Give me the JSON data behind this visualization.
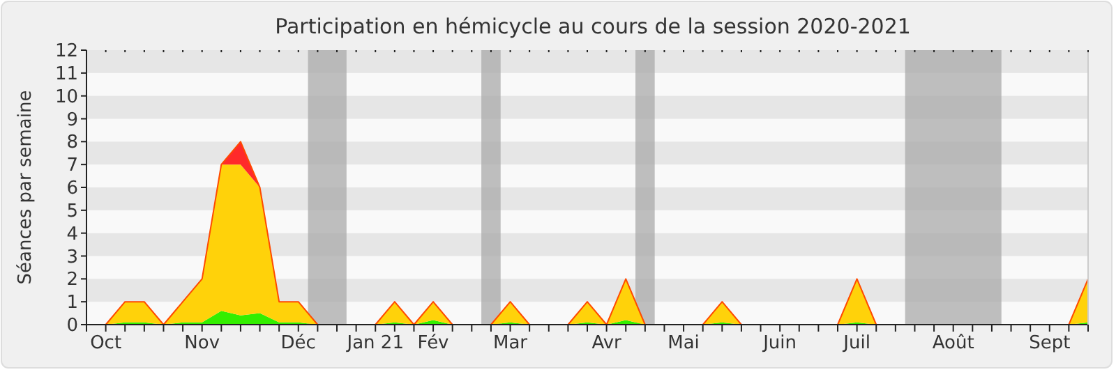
{
  "chart_data": {
    "type": "area",
    "title": "Participation en hémicycle au cours de la session 2020-2021",
    "ylabel": "Séances par semaine",
    "stacked": true,
    "categories": [
      null,
      "Oct",
      null,
      null,
      null,
      null,
      "Nov",
      null,
      null,
      null,
      null,
      "Déc",
      null,
      null,
      null,
      "Jan 21",
      null,
      null,
      "Fév",
      null,
      null,
      null,
      "Mar",
      null,
      null,
      null,
      null,
      "Avr",
      null,
      null,
      null,
      "Mai",
      null,
      null,
      null,
      null,
      "Juin",
      null,
      null,
      null,
      "Juil",
      null,
      null,
      null,
      null,
      "Août",
      null,
      null,
      null,
      null,
      "Sept",
      null,
      null
    ],
    "series": [
      {
        "color": "#33ee00",
        "values": [
          null,
          0,
          0.1,
          0.1,
          0,
          0.1,
          0.1,
          0.6,
          0.4,
          0.5,
          0.1,
          0.1,
          0,
          0,
          0,
          0,
          0.1,
          0,
          0.2,
          0,
          0,
          0,
          0.1,
          0,
          0,
          0,
          0.1,
          0,
          0.2,
          0,
          0,
          0,
          0,
          0.1,
          0,
          0,
          0,
          0,
          0,
          0,
          0.1,
          0,
          0,
          0,
          0,
          0,
          0,
          0,
          0,
          0,
          0,
          0,
          0.1
        ]
      },
      {
        "color": "#ffd20a",
        "values": [
          null,
          0,
          0.9,
          0.9,
          0,
          0.9,
          1.9,
          6.4,
          6.6,
          5.5,
          0.9,
          0.9,
          0,
          0,
          0,
          0,
          0.9,
          0,
          0.8,
          0,
          0,
          0,
          0.9,
          0,
          0,
          0,
          0.9,
          0,
          1.8,
          0,
          0,
          0,
          0,
          0.9,
          0,
          0,
          0,
          0,
          0,
          0,
          1.9,
          0,
          0,
          0,
          0,
          0,
          0,
          0,
          0,
          0,
          0,
          0,
          1.9
        ]
      },
      {
        "color": "#ff2a2a",
        "values": [
          null,
          0,
          0,
          0,
          0,
          0,
          0,
          0,
          1,
          0,
          0,
          0,
          0,
          0,
          0,
          0,
          0,
          0,
          0,
          0,
          0,
          0,
          0,
          0,
          0,
          0,
          0,
          0,
          0,
          0,
          0,
          0,
          0,
          0,
          0,
          0,
          0,
          0,
          0,
          0,
          0,
          0,
          0,
          0,
          0,
          0,
          0,
          0,
          0,
          0,
          0,
          0,
          0
        ]
      }
    ],
    "ylim": [
      0,
      12
    ],
    "yticks": [
      0,
      1,
      2,
      3,
      4,
      5,
      6,
      7,
      8,
      9,
      10,
      11,
      12
    ]
  }
}
